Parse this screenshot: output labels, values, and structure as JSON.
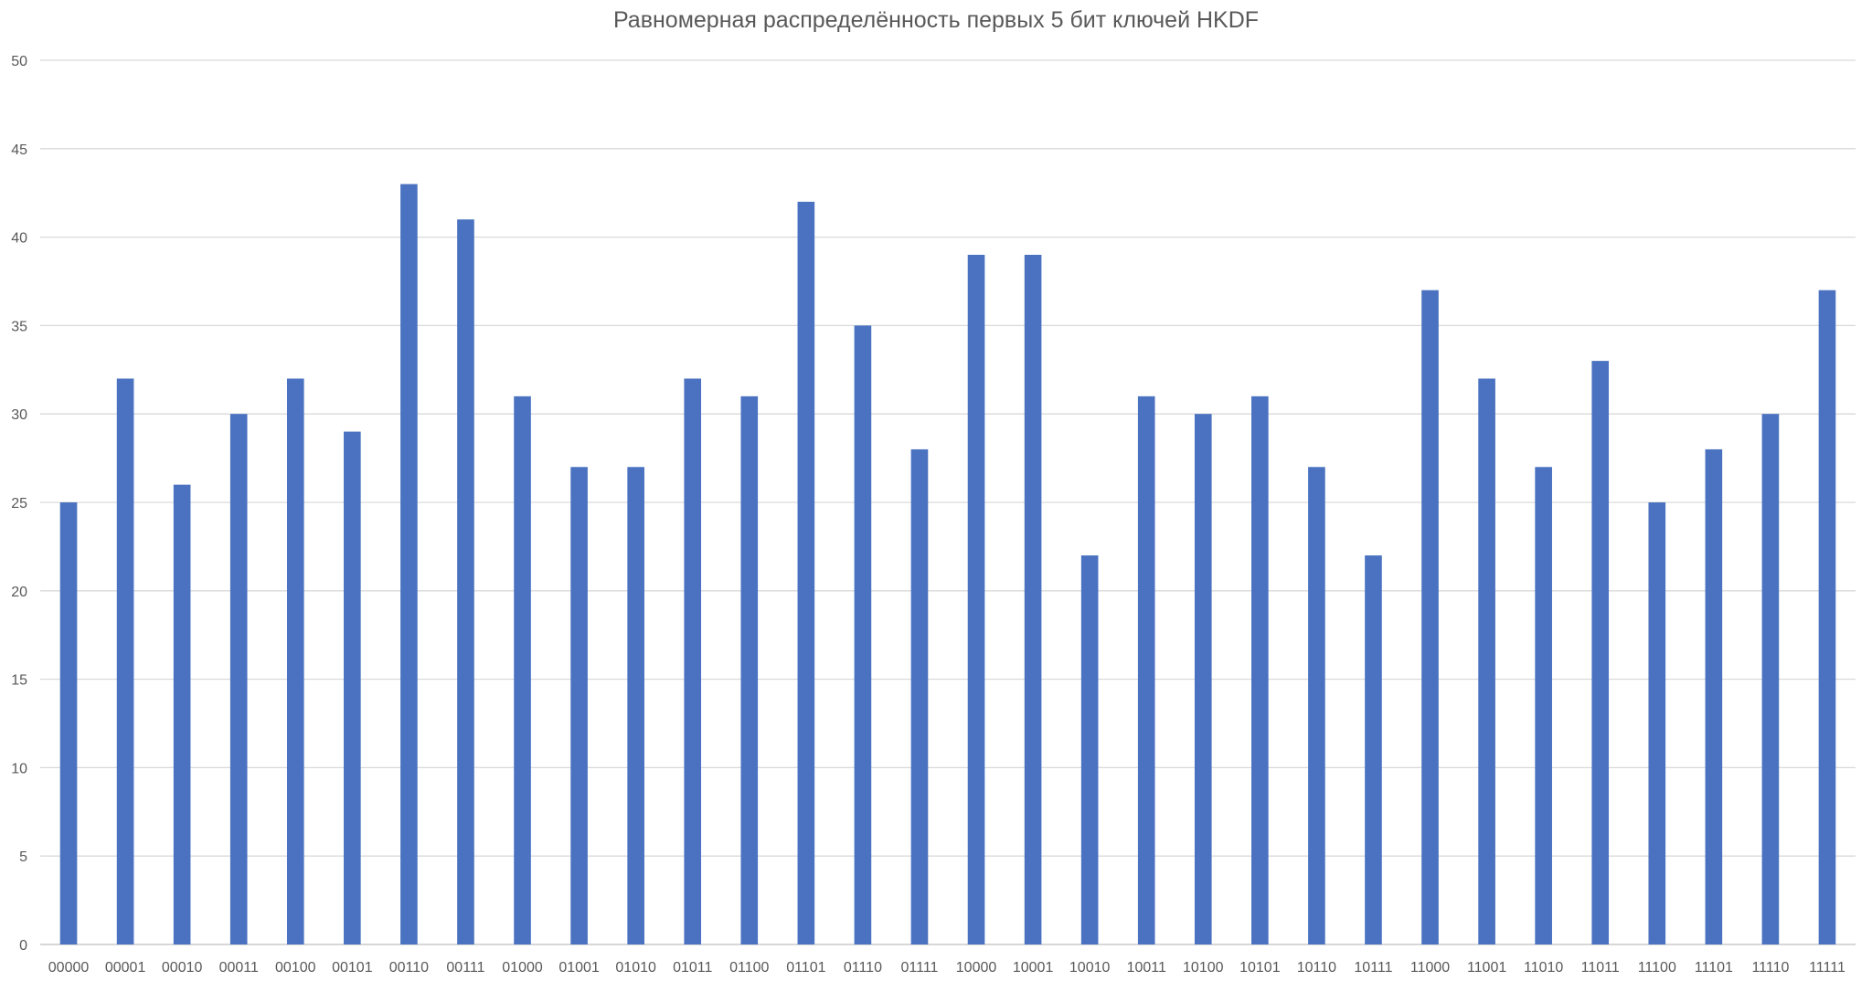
{
  "chart_data": {
    "type": "bar",
    "title": "Равномерная распределённость первых 5 бит ключей HKDF",
    "xlabel": "",
    "ylabel": "",
    "ylim": [
      0,
      50
    ],
    "y_ticks": [
      0,
      5,
      10,
      15,
      20,
      25,
      30,
      35,
      40,
      45,
      50
    ],
    "grid": true,
    "legend": "none",
    "bar_color": "#4a72c0",
    "categories": [
      "00000",
      "00001",
      "00010",
      "00011",
      "00100",
      "00101",
      "00110",
      "00111",
      "01000",
      "01001",
      "01010",
      "01011",
      "01100",
      "01101",
      "01110",
      "01111",
      "10000",
      "10001",
      "10010",
      "10011",
      "10100",
      "10101",
      "10110",
      "10111",
      "11000",
      "11001",
      "11010",
      "11011",
      "11100",
      "11101",
      "11110",
      "11111"
    ],
    "values": [
      25,
      32,
      26,
      30,
      32,
      29,
      43,
      41,
      31,
      27,
      27,
      32,
      31,
      42,
      35,
      28,
      39,
      39,
      22,
      31,
      30,
      31,
      27,
      22,
      37,
      32,
      27,
      33,
      25,
      28,
      30,
      37
    ]
  }
}
